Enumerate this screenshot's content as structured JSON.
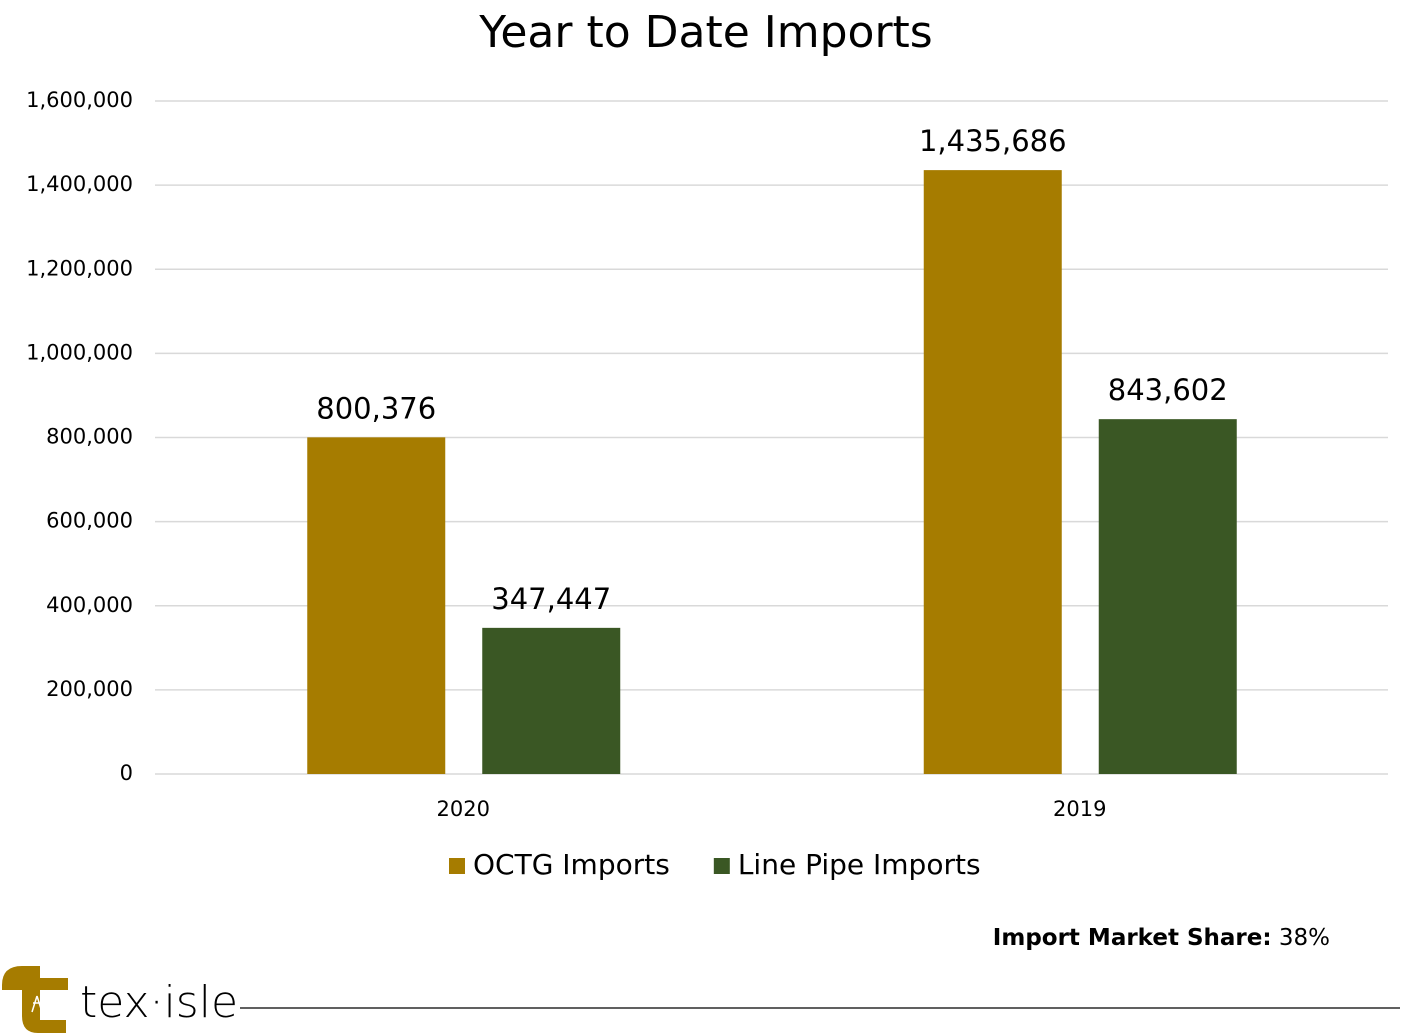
{
  "chart_data": {
    "type": "bar",
    "title": "Year to Date Imports",
    "categories": [
      "2020",
      "2019"
    ],
    "series": [
      {
        "name": "OCTG Imports",
        "color": "#a67c00",
        "values": [
          800376,
          1435686
        ],
        "value_labels": [
          "800,376",
          "1,435,686"
        ]
      },
      {
        "name": "Line Pipe Imports",
        "color": "#3a5724",
        "values": [
          347447,
          843602
        ],
        "value_labels": [
          "347,447",
          "843,602"
        ]
      }
    ],
    "ylim": [
      0,
      1600000
    ],
    "yticks": [
      0,
      {
        "value": 200000,
        "label": "200,000"
      },
      {
        "value": 400000,
        "label": "400,000"
      },
      {
        "value": 600000,
        "label": "600,000"
      },
      {
        "value": 800000,
        "label": "800,000"
      },
      {
        "value": 1000000,
        "label": "1,000,000"
      },
      {
        "value": 1200000,
        "label": "1,200,000"
      },
      {
        "value": 1400000,
        "label": "1,400,000"
      },
      {
        "value": 1600000,
        "label": "1,600,000"
      }
    ],
    "grid": true,
    "legend": "bottom",
    "annotation": {
      "label": "Import Market Share:",
      "value": "38%"
    },
    "brand": "tex·isle"
  }
}
